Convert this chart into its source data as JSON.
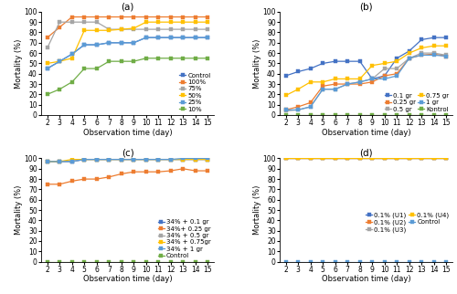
{
  "x": [
    2,
    3,
    4,
    5,
    6,
    7,
    8,
    9,
    10,
    11,
    12,
    13,
    14,
    15
  ],
  "panel_a": {
    "title": "(a)",
    "series_order": [
      "Control",
      "100%",
      "75%",
      "50%",
      "25%",
      "10%"
    ],
    "series": {
      "Control": [
        45,
        52,
        59,
        68,
        68,
        70,
        70,
        70,
        75,
        75,
        75,
        75,
        75,
        75
      ],
      "100%": [
        75,
        85,
        95,
        95,
        95,
        95,
        95,
        95,
        95,
        95,
        95,
        95,
        95,
        95
      ],
      "75%": [
        65,
        90,
        90,
        90,
        90,
        83,
        83,
        83,
        83,
        83,
        83,
        83,
        83,
        83
      ],
      "50%": [
        50,
        52,
        55,
        82,
        82,
        82,
        83,
        84,
        90,
        90,
        90,
        90,
        90,
        90
      ],
      "25%": [
        45,
        52,
        59,
        68,
        68,
        70,
        70,
        70,
        75,
        75,
        75,
        75,
        75,
        75
      ],
      "10%": [
        20,
        25,
        32,
        45,
        45,
        52,
        52,
        52,
        55,
        55,
        55,
        55,
        55,
        55
      ]
    },
    "colors": {
      "Control": "#4472C4",
      "100%": "#ED7D31",
      "75%": "#A5A5A5",
      "50%": "#FFC000",
      "25%": "#5B9BD5",
      "10%": "#70AD47"
    }
  },
  "panel_b": {
    "title": "(b)",
    "series_order": [
      "0.1 gr",
      "0.25 gr",
      "0.5 gr",
      "0.75 gr",
      "1 gr",
      "Kontrol"
    ],
    "series": {
      "0.1 gr": [
        38,
        42,
        45,
        50,
        52,
        52,
        52,
        35,
        38,
        55,
        62,
        73,
        75,
        75
      ],
      "0.25 gr": [
        5,
        8,
        12,
        28,
        30,
        30,
        30,
        32,
        38,
        40,
        55,
        58,
        59,
        57
      ],
      "0.5 gr": [
        4,
        5,
        8,
        25,
        25,
        30,
        32,
        35,
        45,
        45,
        55,
        60,
        60,
        58
      ],
      "0.75 gr": [
        19,
        25,
        32,
        32,
        35,
        35,
        35,
        48,
        50,
        52,
        60,
        65,
        67,
        67
      ],
      "1 gr": [
        5,
        5,
        8,
        25,
        25,
        30,
        32,
        35,
        35,
        38,
        55,
        58,
        58,
        57
      ],
      "Kontrol": [
        0,
        0,
        0,
        0,
        0,
        0,
        0,
        0,
        0,
        0,
        0,
        0,
        0,
        0
      ]
    },
    "colors": {
      "0.1 gr": "#4472C4",
      "0.25 gr": "#ED7D31",
      "0.5 gr": "#A5A5A5",
      "0.75 gr": "#FFC000",
      "1 gr": "#5B9BD5",
      "Kontrol": "#70AD47"
    }
  },
  "panel_c": {
    "title": "(c)",
    "series_order": [
      "34% + 0.1 gr",
      "34%+ 0.25 gr",
      "34% + 0.5 gr",
      "34% + 0.75gr",
      "34% + 1 gr",
      "Control"
    ],
    "series": {
      "34% + 0.1 gr": [
        97,
        97,
        97,
        99,
        99,
        99,
        99,
        99,
        99,
        99,
        99,
        99,
        99,
        99
      ],
      "34%+ 0.25 gr": [
        75,
        75,
        78,
        80,
        80,
        82,
        85,
        87,
        87,
        87,
        88,
        90,
        88,
        88
      ],
      "34% + 0.5 gr": [
        97,
        97,
        97,
        99,
        99,
        99,
        99,
        99,
        99,
        99,
        99,
        99,
        99,
        99
      ],
      "34% + 0.75gr": [
        97,
        97,
        99,
        99,
        99,
        99,
        99,
        99,
        99,
        99,
        99,
        99,
        99,
        99
      ],
      "34% + 1 gr": [
        97,
        97,
        97,
        99,
        99,
        99,
        99,
        99,
        99,
        99,
        99,
        100,
        100,
        100
      ],
      "Control": [
        0,
        0,
        0,
        0,
        0,
        0,
        0,
        0,
        0,
        0,
        0,
        0,
        0,
        0
      ]
    },
    "colors": {
      "34% + 0.1 gr": "#4472C4",
      "34%+ 0.25 gr": "#ED7D31",
      "34% + 0.5 gr": "#A5A5A5",
      "34% + 0.75gr": "#FFC000",
      "34% + 1 gr": "#5B9BD5",
      "Control": "#70AD47"
    }
  },
  "panel_d": {
    "title": "(d)",
    "series_order": [
      "0.1% (U1)",
      "0.1% (U2)",
      "0.1% (U3)",
      "0.1% (U4)",
      "Control"
    ],
    "series": {
      "0.1% (U1)": [
        100,
        100,
        100,
        100,
        100,
        100,
        100,
        100,
        100,
        100,
        100,
        100,
        100,
        100
      ],
      "0.1% (U2)": [
        100,
        100,
        100,
        100,
        100,
        100,
        100,
        100,
        100,
        100,
        100,
        100,
        100,
        100
      ],
      "0.1% (U3)": [
        100,
        100,
        100,
        100,
        100,
        100,
        100,
        100,
        100,
        100,
        100,
        100,
        100,
        100
      ],
      "0.1% (U4)": [
        100,
        100,
        100,
        100,
        100,
        100,
        100,
        100,
        100,
        100,
        100,
        100,
        100,
        100
      ],
      "Control": [
        0,
        0,
        0,
        0,
        0,
        0,
        0,
        0,
        0,
        0,
        0,
        0,
        0,
        0
      ]
    },
    "colors": {
      "0.1% (U1)": "#4472C4",
      "0.1% (U2)": "#ED7D31",
      "0.1% (U3)": "#A5A5A5",
      "0.1% (U4)": "#FFC000",
      "Control": "#5B9BD5"
    }
  },
  "xlabel": "Observation time (day)",
  "ylabel": "Mortality (%)",
  "ylim": [
    0,
    100
  ],
  "yticks": [
    0,
    10,
    20,
    30,
    40,
    50,
    60,
    70,
    80,
    90,
    100
  ],
  "xticks": [
    2,
    3,
    4,
    5,
    6,
    7,
    8,
    9,
    10,
    11,
    12,
    13,
    14,
    15
  ],
  "marker": "s",
  "markersize": 2.5,
  "linewidth": 0.9,
  "legend_fontsize": 5.0,
  "tick_fontsize": 5.5,
  "label_fontsize": 6.0,
  "title_fontsize": 7.5
}
